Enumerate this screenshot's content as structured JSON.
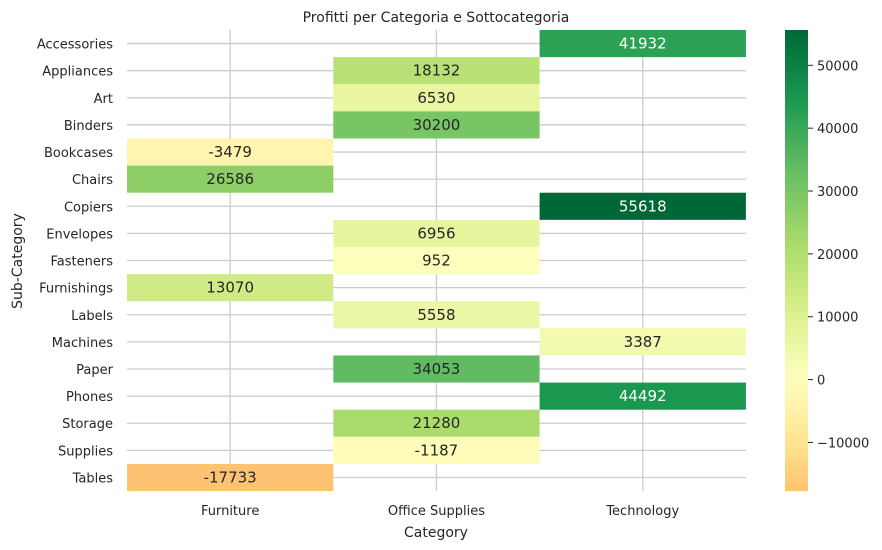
{
  "chart_data": {
    "type": "heatmap",
    "title": "Profitti per Categoria e Sottocategoria",
    "xlabel": "Category",
    "ylabel": "Sub-Category",
    "x_categories": [
      "Furniture",
      "Office Supplies",
      "Technology"
    ],
    "y_categories": [
      "Accessories",
      "Appliances",
      "Art",
      "Binders",
      "Bookcases",
      "Chairs",
      "Copiers",
      "Envelopes",
      "Fasteners",
      "Furnishings",
      "Labels",
      "Machines",
      "Paper",
      "Phones",
      "Storage",
      "Supplies",
      "Tables"
    ],
    "cells": [
      {
        "x": "Technology",
        "y": "Accessories",
        "value": 41932
      },
      {
        "x": "Office Supplies",
        "y": "Appliances",
        "value": 18132
      },
      {
        "x": "Office Supplies",
        "y": "Art",
        "value": 6530
      },
      {
        "x": "Office Supplies",
        "y": "Binders",
        "value": 30200
      },
      {
        "x": "Furniture",
        "y": "Bookcases",
        "value": -3479
      },
      {
        "x": "Furniture",
        "y": "Chairs",
        "value": 26586
      },
      {
        "x": "Technology",
        "y": "Copiers",
        "value": 55618
      },
      {
        "x": "Office Supplies",
        "y": "Envelopes",
        "value": 6956
      },
      {
        "x": "Office Supplies",
        "y": "Fasteners",
        "value": 952
      },
      {
        "x": "Furniture",
        "y": "Furnishings",
        "value": 13070
      },
      {
        "x": "Office Supplies",
        "y": "Labels",
        "value": 5558
      },
      {
        "x": "Technology",
        "y": "Machines",
        "value": 3387
      },
      {
        "x": "Office Supplies",
        "y": "Paper",
        "value": 34053
      },
      {
        "x": "Technology",
        "y": "Phones",
        "value": 44492
      },
      {
        "x": "Office Supplies",
        "y": "Storage",
        "value": 21280
      },
      {
        "x": "Office Supplies",
        "y": "Supplies",
        "value": -1187
      },
      {
        "x": "Furniture",
        "y": "Tables",
        "value": -17733
      }
    ],
    "colorbar": {
      "colormap": "RdYlGn (centered at 0)",
      "range": [
        -17733,
        55618
      ],
      "ticks": [
        -10000,
        0,
        10000,
        20000,
        30000,
        40000,
        50000
      ],
      "tick_labels": [
        "−10000",
        "0",
        "10000",
        "20000",
        "30000",
        "40000",
        "50000"
      ]
    },
    "grid": true
  }
}
